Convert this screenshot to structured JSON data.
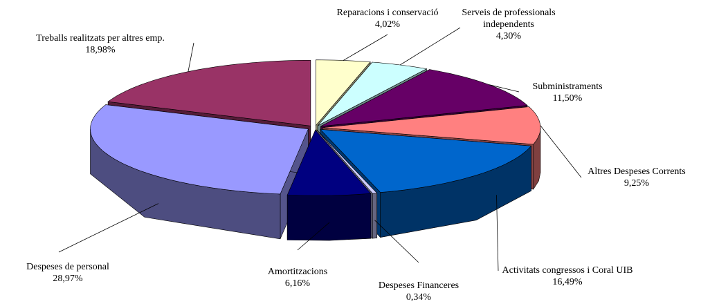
{
  "chart_data": {
    "type": "pie",
    "categories": [
      "Reparacions i conservació",
      "Serveis de professionals independents",
      "Subministraments",
      "Altres Despeses Corrents",
      "Activitats congressos i Coral UIB",
      "Despeses Financeres",
      "Amortitzacions",
      "Despeses de personal",
      "Treballs realitzats per altres emp."
    ],
    "values": [
      4.02,
      4.3,
      11.5,
      9.25,
      16.49,
      0.34,
      6.16,
      28.97,
      18.98
    ],
    "value_labels": [
      "4,02%",
      "4,30%",
      "11,50%",
      "9,25%",
      "16,49%",
      "0,34%",
      "6,16%",
      "28,97%",
      "18,98%"
    ],
    "colors": [
      "#ffffcc",
      "#ccffff",
      "#660066",
      "#ff8080",
      "#0066cc",
      "#ccccff",
      "#000080",
      "#9999ff",
      "#993366"
    ],
    "three_d": true,
    "exploded": true
  }
}
